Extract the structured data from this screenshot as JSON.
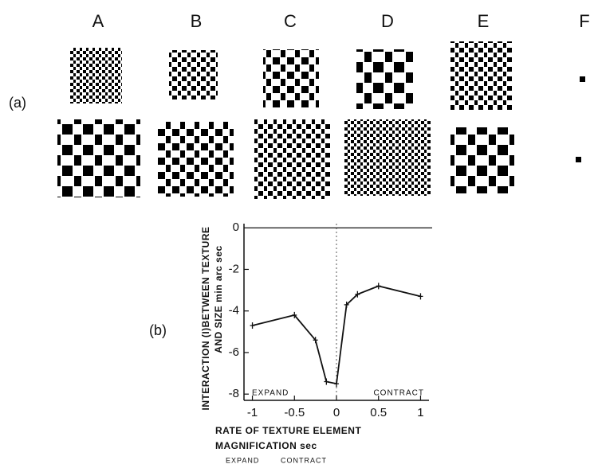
{
  "panel_a": {
    "label": "(a)",
    "columns": [
      "A",
      "B",
      "C",
      "D",
      "E",
      "F"
    ]
  },
  "panel_b_label": "(b)",
  "chart_data": {
    "type": "line",
    "y_label": [
      "INTERACTION (I)BETWEEN TEXTURE",
      "AND SIZE min arc sec"
    ],
    "x_label": [
      "RATE OF TEXTURE ELEMENT",
      "MAGNIFICATION sec"
    ],
    "x_direction_labels": [
      "EXPAND",
      "CONTRACT"
    ],
    "annotations": [
      "EXPAND",
      "CONTRACT"
    ],
    "x": [
      -1,
      -0.5,
      -0.25,
      -0.12,
      0,
      0.12,
      0.25,
      0.5,
      1
    ],
    "values": [
      -4.7,
      -4.2,
      -5.4,
      -7.4,
      -7.5,
      -3.7,
      -3.2,
      -2.8,
      -3.3
    ],
    "color": "#111",
    "xlim": [
      -1.1,
      1.1
    ],
    "ylim": [
      -8.3,
      0.2
    ],
    "xticks": [
      -1,
      -0.5,
      0,
      0.5,
      1
    ],
    "yticks": [
      0,
      -2,
      -4,
      -6,
      -8
    ]
  }
}
